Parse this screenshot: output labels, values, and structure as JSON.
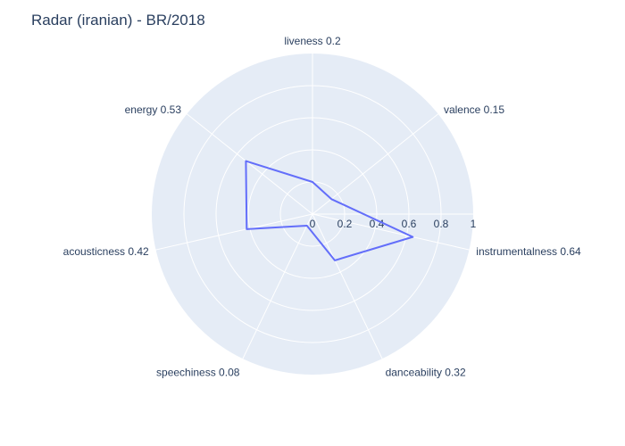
{
  "chart_data": {
    "type": "radar",
    "title": "Radar (iranian) - BR/2018",
    "axes": [
      {
        "name": "liveness",
        "value": 0.2,
        "label": "liveness 0.2"
      },
      {
        "name": "valence",
        "value": 0.15,
        "label": "valence 0.15"
      },
      {
        "name": "instrumentalness",
        "value": 0.64,
        "label": "instrumentalness 0.64"
      },
      {
        "name": "danceability",
        "value": 0.32,
        "label": "danceability 0.32"
      },
      {
        "name": "speechiness",
        "value": 0.08,
        "label": "speechiness 0.08"
      },
      {
        "name": "acousticness",
        "value": 0.42,
        "label": "acousticness 0.42"
      },
      {
        "name": "energy",
        "value": 0.53,
        "label": "energy 0.53"
      }
    ],
    "radial_range": [
      0,
      1
    ],
    "radial_ticks": [
      "0",
      "0.2",
      "0.4",
      "0.6",
      "0.8",
      "1"
    ],
    "grid": true,
    "colors": {
      "background": "#e5ecf6",
      "grid": "#ffffff",
      "line": "#636efa",
      "text": "#2a3f5f"
    }
  }
}
